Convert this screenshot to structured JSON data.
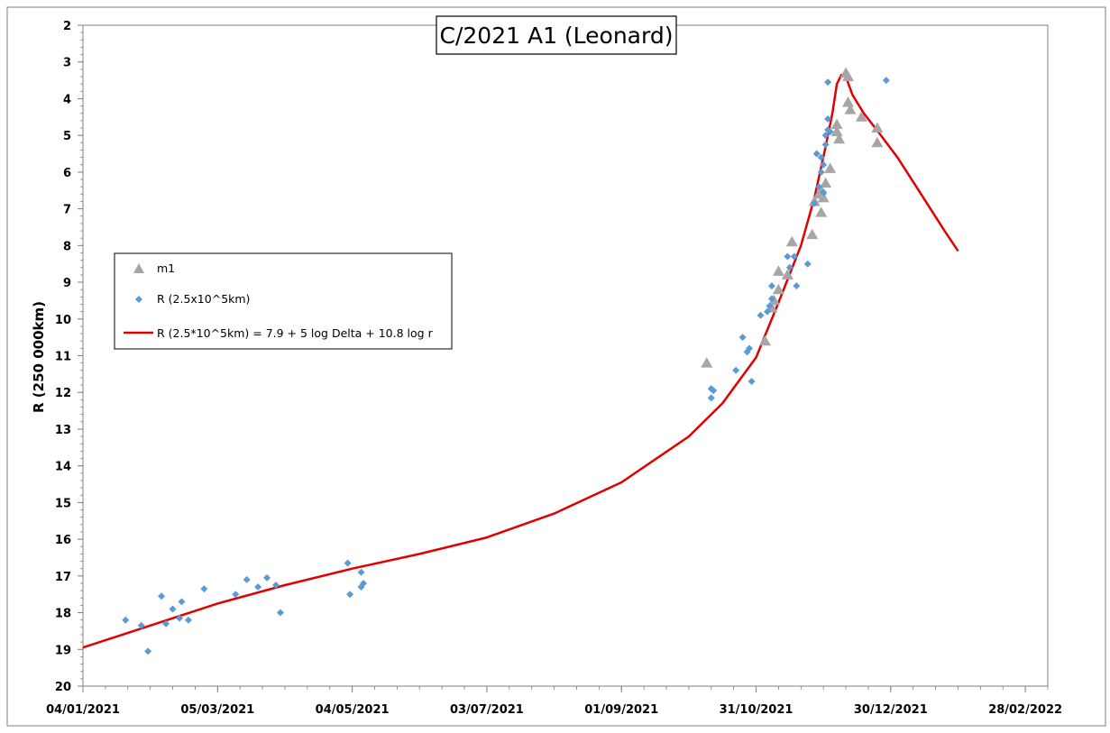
{
  "chart_data": {
    "type": "scatter",
    "title": "C/2021 A1 (Leonard)",
    "ylabel": "R (250 000km)",
    "xlabel": "",
    "y_inverted": true,
    "ylim": [
      2,
      20
    ],
    "xlim": [
      "2021-01-04",
      "2022-03-10"
    ],
    "x_tick_labels": [
      "04/01/2021",
      "05/03/2021",
      "04/05/2021",
      "03/07/2021",
      "01/09/2021",
      "31/10/2021",
      "30/12/2021",
      "28/02/2022"
    ],
    "x_tick_dates": [
      "2021-01-04",
      "2021-03-05",
      "2021-05-04",
      "2021-07-03",
      "2021-09-01",
      "2021-10-31",
      "2021-12-30",
      "2022-02-28"
    ],
    "y_ticks": [
      2,
      3,
      4,
      5,
      6,
      7,
      8,
      9,
      10,
      11,
      12,
      13,
      14,
      15,
      16,
      17,
      18,
      19,
      20
    ],
    "grid": false,
    "legend_position": "left-middle",
    "colors": {
      "m1": "#a6a6a6",
      "R": "#5b9bd5",
      "fit": "#e00000"
    },
    "series": [
      {
        "name": "m1",
        "kind": "scatter",
        "marker": "triangle",
        "points": [
          [
            "2021-10-09",
            11.2
          ],
          [
            "2021-11-04",
            10.6
          ],
          [
            "2021-11-07",
            9.7
          ],
          [
            "2021-11-08",
            9.5
          ],
          [
            "2021-11-10",
            9.2
          ],
          [
            "2021-11-10",
            8.7
          ],
          [
            "2021-11-14",
            8.8
          ],
          [
            "2021-11-16",
            7.9
          ],
          [
            "2021-11-25",
            7.7
          ],
          [
            "2021-11-26",
            6.8
          ],
          [
            "2021-11-28",
            6.6
          ],
          [
            "2021-11-29",
            7.1
          ],
          [
            "2021-11-29",
            6.5
          ],
          [
            "2021-11-30",
            6.7
          ],
          [
            "2021-12-01",
            6.3
          ],
          [
            "2021-12-03",
            5.9
          ],
          [
            "2021-12-06",
            4.9
          ],
          [
            "2021-12-06",
            4.7
          ],
          [
            "2021-12-07",
            5.1
          ],
          [
            "2021-12-10",
            3.3
          ],
          [
            "2021-12-11",
            3.4
          ],
          [
            "2021-12-11",
            4.1
          ],
          [
            "2021-12-12",
            4.3
          ],
          [
            "2021-12-17",
            4.5
          ],
          [
            "2021-12-24",
            4.8
          ],
          [
            "2021-12-24",
            5.2
          ]
        ]
      },
      {
        "name": "R (2.5x10^5km)",
        "kind": "scatter",
        "marker": "diamond",
        "points": [
          [
            "2021-01-23",
            18.2
          ],
          [
            "2021-01-30",
            18.35
          ],
          [
            "2021-02-02",
            19.05
          ],
          [
            "2021-02-08",
            17.55
          ],
          [
            "2021-02-10",
            18.3
          ],
          [
            "2021-02-13",
            17.9
          ],
          [
            "2021-02-16",
            18.15
          ],
          [
            "2021-02-17",
            17.7
          ],
          [
            "2021-02-20",
            18.2
          ],
          [
            "2021-02-27",
            17.35
          ],
          [
            "2021-03-13",
            17.5
          ],
          [
            "2021-03-18",
            17.1
          ],
          [
            "2021-03-23",
            17.3
          ],
          [
            "2021-03-27",
            17.05
          ],
          [
            "2021-03-31",
            17.25
          ],
          [
            "2021-04-02",
            18.0
          ],
          [
            "2021-05-02",
            16.65
          ],
          [
            "2021-05-03",
            17.5
          ],
          [
            "2021-05-08",
            16.9
          ],
          [
            "2021-05-08",
            17.3
          ],
          [
            "2021-05-09",
            17.2
          ],
          [
            "2021-10-11",
            12.15
          ],
          [
            "2021-10-11",
            11.9
          ],
          [
            "2021-10-12",
            11.95
          ],
          [
            "2021-10-22",
            11.4
          ],
          [
            "2021-10-25",
            10.5
          ],
          [
            "2021-10-27",
            10.9
          ],
          [
            "2021-10-28",
            10.8
          ],
          [
            "2021-10-29",
            11.7
          ],
          [
            "2021-11-02",
            9.9
          ],
          [
            "2021-11-05",
            9.8
          ],
          [
            "2021-11-06",
            9.65
          ],
          [
            "2021-11-07",
            9.45
          ],
          [
            "2021-11-07",
            9.1
          ],
          [
            "2021-11-14",
            8.3
          ],
          [
            "2021-11-15",
            8.6
          ],
          [
            "2021-11-17",
            8.3
          ],
          [
            "2021-11-18",
            9.1
          ],
          [
            "2021-11-23",
            8.5
          ],
          [
            "2021-11-26",
            6.85
          ],
          [
            "2021-11-27",
            5.5
          ],
          [
            "2021-11-28",
            6.4
          ],
          [
            "2021-11-29",
            5.6
          ],
          [
            "2021-11-29",
            6.0
          ],
          [
            "2021-11-30",
            5.8
          ],
          [
            "2021-11-30",
            6.55
          ],
          [
            "2021-12-01",
            5.0
          ],
          [
            "2021-12-01",
            5.25
          ],
          [
            "2021-12-02",
            4.85
          ],
          [
            "2021-12-02",
            4.55
          ],
          [
            "2021-12-02",
            3.55
          ],
          [
            "2021-12-03",
            4.9
          ],
          [
            "2021-12-28",
            3.5
          ]
        ]
      },
      {
        "name": "R (2.5*10^5km) = 7.9 + 5 log Delta + 10.8 log r",
        "kind": "line",
        "points": [
          [
            "2021-01-04",
            18.95
          ],
          [
            "2021-02-03",
            18.35
          ],
          [
            "2021-03-05",
            17.75
          ],
          [
            "2021-04-04",
            17.25
          ],
          [
            "2021-05-04",
            16.8
          ],
          [
            "2021-06-03",
            16.4
          ],
          [
            "2021-07-03",
            15.95
          ],
          [
            "2021-08-02",
            15.3
          ],
          [
            "2021-09-01",
            14.45
          ],
          [
            "2021-10-01",
            13.2
          ],
          [
            "2021-10-16",
            12.3
          ],
          [
            "2021-10-31",
            11.05
          ],
          [
            "2021-11-10",
            9.55
          ],
          [
            "2021-11-20",
            8.0
          ],
          [
            "2021-11-26",
            6.7
          ],
          [
            "2021-12-01",
            5.3
          ],
          [
            "2021-12-04",
            4.4
          ],
          [
            "2021-12-06",
            3.6
          ],
          [
            "2021-12-08",
            3.35
          ],
          [
            "2021-12-10",
            3.4
          ],
          [
            "2021-12-13",
            3.9
          ],
          [
            "2021-12-18",
            4.4
          ],
          [
            "2021-12-25",
            4.95
          ],
          [
            "2022-01-02",
            5.6
          ],
          [
            "2022-01-12",
            6.55
          ],
          [
            "2022-01-23",
            7.6
          ],
          [
            "2022-01-29",
            8.15
          ]
        ]
      }
    ]
  }
}
